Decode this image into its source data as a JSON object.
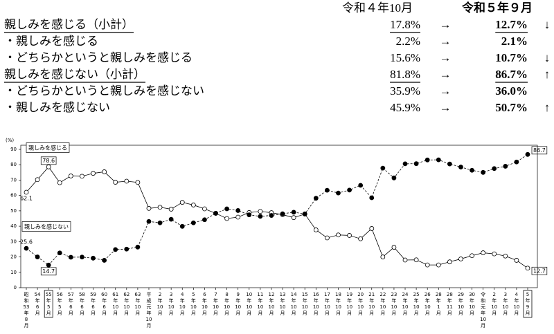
{
  "table": {
    "header": [
      "令和４年10月",
      "令和５年９月"
    ],
    "rows": [
      {
        "label": "親しみを感じる（小計）",
        "before": "17.8%",
        "arrow": "→",
        "after": "12.7%",
        "trend": "↓",
        "subtotal": true
      },
      {
        "label": "・親しみを感じる",
        "before": "2.2%",
        "arrow": "→",
        "after": "2.1%"
      },
      {
        "label": "・どちらかというと親しみを感じる",
        "before": "15.6%",
        "arrow": "→",
        "after": "10.7%",
        "trend": "↓"
      },
      {
        "label": "親しみを感じない（小計）",
        "before": "81.8%",
        "arrow": "→",
        "after": "86.7%",
        "trend": "↑",
        "subtotal": true
      },
      {
        "label": "・どちらかというと親しみを感じない",
        "before": "35.9%",
        "arrow": "→",
        "after": "36.0%"
      },
      {
        "label": "・親しみを感じない",
        "before": "45.9%",
        "arrow": "→",
        "after": "50.7%",
        "trend": "↑"
      }
    ]
  },
  "chart_data": {
    "type": "line",
    "y_unit": "(%)",
    "categories": [
      "昭和53年8月",
      "54年6月",
      "55年5月",
      "56年5月",
      "57年6月",
      "58年6月",
      "59年6月",
      "60年6月",
      "61年10月",
      "62年10月",
      "63年10月",
      "平成元年10月",
      "2年10月",
      "3年10月",
      "4年10月",
      "5年10月",
      "6年10月",
      "7年10月",
      "8年10月",
      "9年10月",
      "10年10月",
      "11年10月",
      "12年10月",
      "13年10月",
      "14年10月",
      "15年10月",
      "16年10月",
      "17年10月",
      "18年10月",
      "19年10月",
      "20年10月",
      "21年10月",
      "22年10月",
      "23年10月",
      "24年10月",
      "25年10月",
      "26年10月",
      "28年1月",
      "28年11月",
      "29年10月",
      "30年10月",
      "令和元年10月",
      "2年10月",
      "3年10月",
      "4年10月",
      "5年9月"
    ],
    "highlighted": [
      2,
      45
    ],
    "ylim": [
      0,
      90
    ],
    "yticks": [
      0,
      10,
      20,
      30,
      40,
      50,
      60,
      70,
      80,
      90
    ],
    "series": [
      {
        "name": "親しみを感じる",
        "color": "#000000",
        "marker": "open",
        "line_style": "solid",
        "values": [
          62.1,
          70.3,
          78.6,
          68.3,
          72.7,
          72.5,
          74.4,
          75.4,
          68.6,
          69.3,
          68.5,
          51.6,
          52.3,
          51.1,
          55.5,
          53.8,
          51.3,
          48.4,
          45.0,
          45.9,
          48.9,
          49.6,
          48.8,
          47.5,
          45.6,
          47.9,
          37.6,
          32.4,
          34.3,
          34.0,
          31.8,
          38.5,
          20.0,
          26.3,
          18.0,
          18.1,
          14.8,
          14.8,
          16.8,
          18.7,
          20.8,
          22.7,
          22.0,
          20.6,
          17.8,
          12.7
        ],
        "value_labels": [
          "62.1",
          null,
          "78.6",
          null,
          null,
          null,
          null,
          null,
          null,
          null,
          null,
          null,
          null,
          null,
          null,
          null,
          null,
          null,
          null,
          null,
          null,
          null,
          null,
          null,
          null,
          null,
          null,
          null,
          null,
          null,
          null,
          null,
          null,
          null,
          null,
          null,
          null,
          null,
          null,
          null,
          null,
          null,
          null,
          null,
          null,
          "12.7"
        ]
      },
      {
        "name": "親しみを感じない",
        "color": "#000000",
        "marker": "filled",
        "line_style": "dashed",
        "values": [
          25.6,
          20.0,
          14.7,
          22.6,
          19.8,
          19.9,
          19.2,
          17.8,
          24.8,
          25.1,
          26.4,
          43.1,
          42.2,
          44.5,
          39.9,
          42.2,
          44.2,
          48.4,
          51.3,
          50.2,
          47.4,
          46.4,
          47.0,
          48.1,
          49.1,
          48.0,
          58.2,
          63.4,
          61.6,
          63.5,
          66.6,
          58.5,
          77.8,
          71.4,
          80.6,
          80.7,
          83.1,
          83.2,
          80.5,
          78.5,
          76.4,
          75.0,
          77.5,
          79.0,
          81.8,
          86.7
        ],
        "value_labels": [
          "25.6",
          null,
          "14.7",
          null,
          null,
          null,
          null,
          null,
          null,
          null,
          null,
          null,
          null,
          null,
          null,
          null,
          null,
          null,
          null,
          null,
          null,
          null,
          null,
          null,
          null,
          null,
          null,
          null,
          null,
          null,
          null,
          null,
          null,
          null,
          null,
          null,
          null,
          null,
          null,
          null,
          null,
          null,
          null,
          null,
          null,
          "86.7"
        ]
      }
    ]
  }
}
